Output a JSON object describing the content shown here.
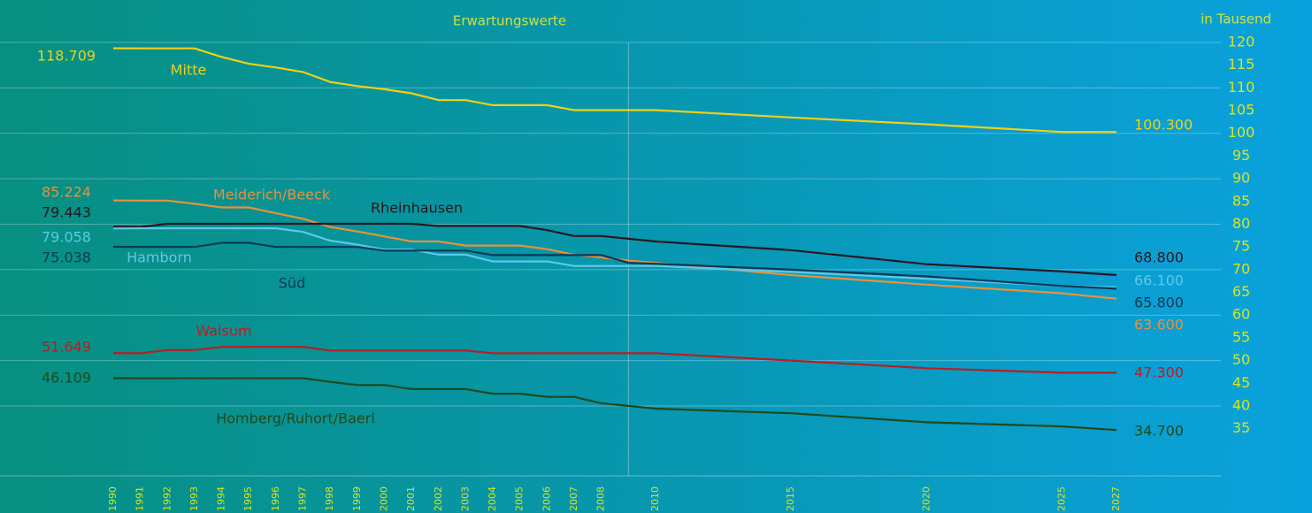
{
  "chart_data": {
    "type": "line",
    "title": "Erwartungswerte",
    "y_axis_label": "in Tausend",
    "x": [
      1990,
      1991,
      1992,
      1993,
      1994,
      1995,
      1996,
      1997,
      1998,
      1999,
      2000,
      2001,
      2002,
      2003,
      2004,
      2005,
      2006,
      2007,
      2008,
      2009,
      2010,
      2015,
      2020,
      2025,
      2027
    ],
    "xlim": [
      1990,
      2027
    ],
    "xticks": [
      1990,
      1991,
      1992,
      1993,
      1994,
      1995,
      1996,
      1997,
      1998,
      1999,
      2000,
      2001,
      2002,
      2003,
      2004,
      2005,
      2006,
      2007,
      2008,
      2010,
      2015,
      2020,
      2025,
      2027
    ],
    "reference_x": 2009,
    "ylim": [
      25,
      120
    ],
    "yticks": [
      35,
      40,
      45,
      50,
      55,
      60,
      65,
      70,
      75,
      80,
      85,
      90,
      95,
      100,
      105,
      110,
      115,
      120
    ],
    "grid": true,
    "series": [
      {
        "name": "Mitte",
        "color": "#f2d016",
        "values": [
          118.709,
          118.7,
          118.7,
          118.7,
          116.8,
          115.3,
          114.5,
          113.5,
          111.3,
          110.4,
          109.7,
          108.8,
          107.3,
          107.3,
          106.2,
          106.2,
          106.2,
          105.1,
          105.1,
          105.1,
          105.1,
          103.5,
          102,
          100.3,
          100.3
        ],
        "value_labels": [
          "118.709",
          null,
          null,
          null,
          null,
          null,
          null,
          null,
          null,
          null,
          null,
          null,
          null,
          null,
          null,
          null,
          null,
          null,
          null,
          null,
          null,
          null,
          null,
          null,
          "100.300"
        ]
      },
      {
        "name": "Meiderich/Beeck",
        "color": "#e8913a",
        "values": [
          85.224,
          85.2,
          85.2,
          84.5,
          83.7,
          83.7,
          82.4,
          81.2,
          79.4,
          78.4,
          77.3,
          76.2,
          76.2,
          75.3,
          75.3,
          75.3,
          74.5,
          73.3,
          72.7,
          72.0,
          71.5,
          68.8,
          66.7,
          64.8,
          63.6
        ],
        "value_labels": [
          "85.224",
          null,
          null,
          null,
          null,
          null,
          null,
          null,
          null,
          null,
          null,
          null,
          null,
          null,
          null,
          null,
          null,
          null,
          null,
          null,
          null,
          null,
          null,
          null,
          "63.600"
        ]
      },
      {
        "name": "Rheinhausen",
        "color": "#2a1620",
        "values": [
          79.443,
          79.4,
          80.1,
          80.1,
          80.1,
          80.1,
          80.1,
          80.1,
          80.1,
          80.1,
          80.1,
          80.1,
          79.6,
          79.6,
          79.6,
          79.6,
          78.7,
          77.4,
          77.4,
          76.8,
          76.2,
          74.3,
          71.2,
          69.6,
          68.8
        ],
        "value_labels": [
          "79.443",
          null,
          null,
          null,
          null,
          null,
          null,
          null,
          null,
          null,
          null,
          null,
          null,
          null,
          null,
          null,
          null,
          null,
          null,
          null,
          null,
          null,
          null,
          null,
          "68.800"
        ]
      },
      {
        "name": "Hamborn",
        "color": "#5cc8ea",
        "values": [
          79.058,
          79.1,
          79.1,
          79.1,
          79.1,
          79.1,
          79.1,
          78.3,
          76.4,
          75.5,
          74.4,
          74.4,
          73.3,
          73.3,
          71.8,
          71.8,
          71.8,
          70.8,
          70.8,
          70.8,
          70.8,
          69.5,
          68.0,
          66.4,
          66.1
        ],
        "value_labels": [
          "79.058",
          null,
          null,
          null,
          null,
          null,
          null,
          null,
          null,
          null,
          null,
          null,
          null,
          null,
          null,
          null,
          null,
          null,
          null,
          null,
          null,
          null,
          null,
          null,
          "66.100"
        ]
      },
      {
        "name": "Süd",
        "color": "#0a3a55",
        "values": [
          75.038,
          75.0,
          75.0,
          75.0,
          75.9,
          75.9,
          75.0,
          75.0,
          75.0,
          75.0,
          74.2,
          74.2,
          74.2,
          74.2,
          73.2,
          73.2,
          73.2,
          73.2,
          73.2,
          71.5,
          71.3,
          70.0,
          68.5,
          66.4,
          65.8
        ],
        "value_labels": [
          "75.038",
          null,
          null,
          null,
          null,
          null,
          null,
          null,
          null,
          null,
          null,
          null,
          null,
          null,
          null,
          null,
          null,
          null,
          null,
          null,
          null,
          null,
          null,
          null,
          "65.800"
        ]
      },
      {
        "name": "Walsum",
        "color": "#b51f24",
        "values": [
          51.649,
          51.6,
          52.3,
          52.3,
          53.0,
          53.0,
          53.0,
          53.0,
          52.2,
          52.2,
          52.2,
          52.2,
          52.2,
          52.2,
          51.6,
          51.6,
          51.6,
          51.6,
          51.6,
          51.6,
          51.6,
          50.0,
          48.3,
          47.3,
          47.3
        ],
        "value_labels": [
          "51.649",
          null,
          null,
          null,
          null,
          null,
          null,
          null,
          null,
          null,
          null,
          null,
          null,
          null,
          null,
          null,
          null,
          null,
          null,
          null,
          null,
          null,
          null,
          null,
          "47.300"
        ]
      },
      {
        "name": "Homberg/Ruhort/Baerl",
        "color": "#1f4a1a",
        "values": [
          46.109,
          46.1,
          46.1,
          46.1,
          46.1,
          46.1,
          46.1,
          46.1,
          45.3,
          44.6,
          44.6,
          43.7,
          43.7,
          43.7,
          42.7,
          42.7,
          42.0,
          42.0,
          40.6,
          40.0,
          39.4,
          38.4,
          36.4,
          35.5,
          34.7
        ],
        "value_labels": [
          "46.109",
          null,
          null,
          null,
          null,
          null,
          null,
          null,
          null,
          null,
          null,
          null,
          null,
          null,
          null,
          null,
          null,
          null,
          null,
          null,
          null,
          null,
          null,
          null,
          "34.700"
        ]
      }
    ]
  }
}
